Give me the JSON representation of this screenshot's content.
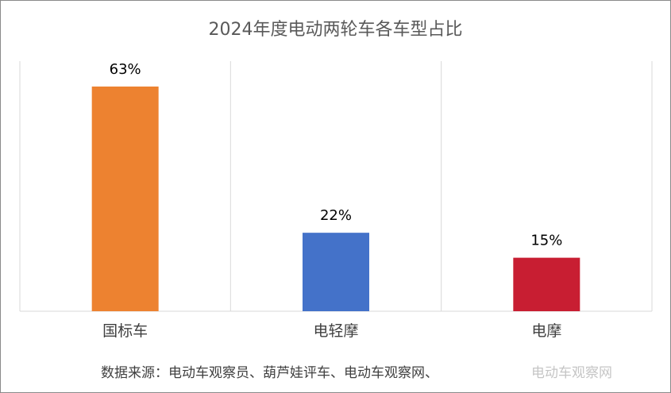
{
  "chart_data": {
    "type": "bar",
    "title": "2024年度电动两轮车各车型占比",
    "categories": [
      "国标车",
      "电轻摩",
      "电摩"
    ],
    "values": [
      63,
      22,
      15
    ],
    "value_labels": [
      "63%",
      "22%",
      "15%"
    ],
    "colors": [
      "#ED8230",
      "#4472C9",
      "#C81E32"
    ],
    "ylim": [
      0,
      63
    ],
    "grid": "vertical category separators",
    "legend": "none"
  },
  "footer": {
    "source": "数据来源：电动车观察员、葫芦娃评车、电动车观察网、"
  },
  "watermark": "电动车观察网"
}
